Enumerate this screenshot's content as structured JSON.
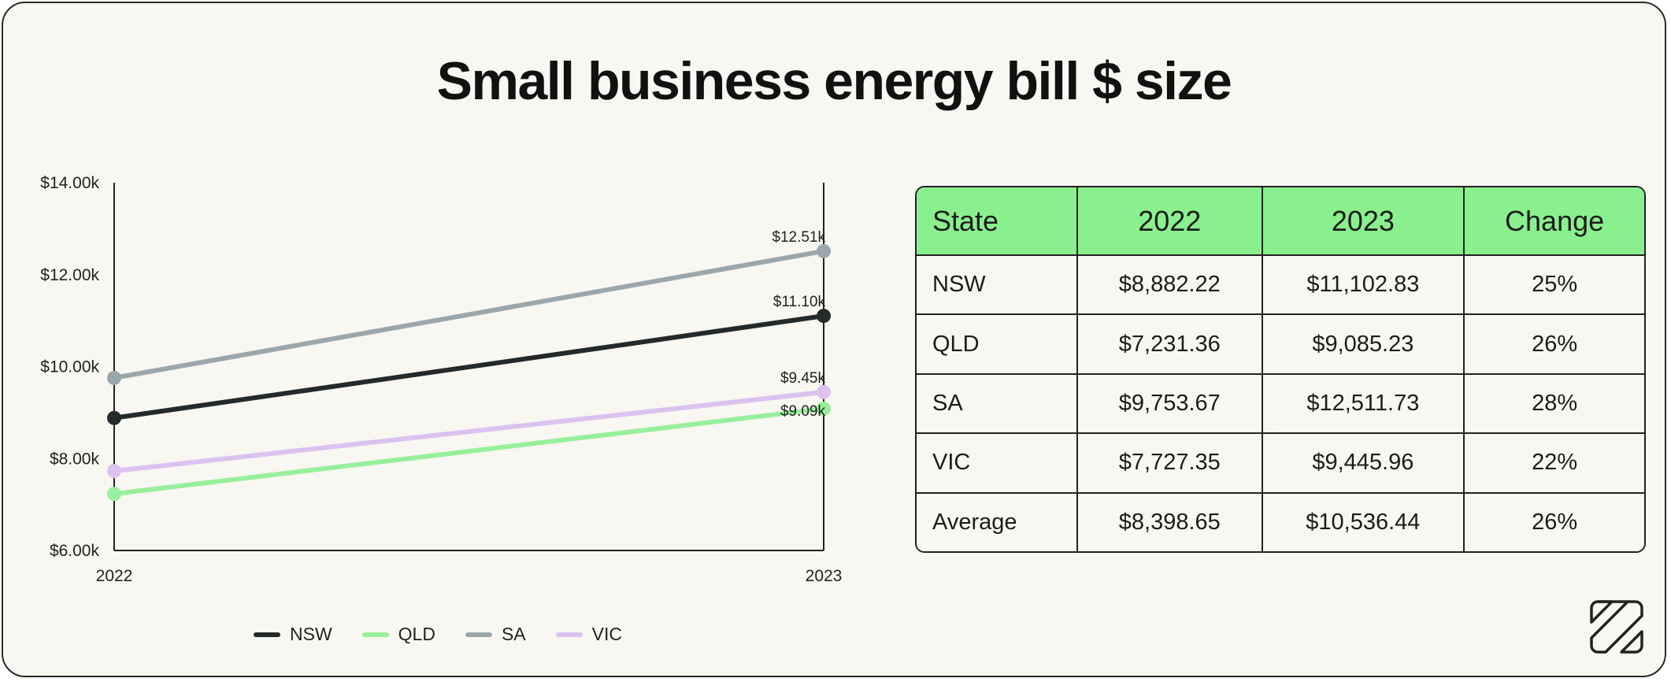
{
  "title": "Small business energy bill $ size",
  "colors": {
    "NSW": "#24292a",
    "QLD": "#98ef9c",
    "SA": "#9aa7ad",
    "VIC": "#dcc1f1",
    "header_bg": "#8af08d",
    "background": "#f8f7f1"
  },
  "chart_data": {
    "type": "line",
    "x": [
      "2022",
      "2023"
    ],
    "ylim": [
      6000,
      14000
    ],
    "yticks": [
      {
        "value": 6000,
        "label": "$6.00k"
      },
      {
        "value": 8000,
        "label": "$8.00k"
      },
      {
        "value": 10000,
        "label": "$10.00k"
      },
      {
        "value": 12000,
        "label": "$12.00k"
      },
      {
        "value": 14000,
        "label": "$14.00k"
      }
    ],
    "grid": false,
    "legend_position": "bottom",
    "series": [
      {
        "name": "NSW",
        "values": [
          8882.22,
          11102.83
        ],
        "end_label": "$11.10k"
      },
      {
        "name": "QLD",
        "values": [
          7231.36,
          9085.23
        ],
        "end_label": "$9.09k"
      },
      {
        "name": "SA",
        "values": [
          9753.67,
          12511.73
        ],
        "end_label": "$12.51k"
      },
      {
        "name": "VIC",
        "values": [
          7727.35,
          9445.96
        ],
        "end_label": "$9.45k"
      }
    ]
  },
  "table": {
    "headers": [
      "State",
      "2022",
      "2023",
      "Change"
    ],
    "rows": [
      [
        "NSW",
        "$8,882.22",
        "$11,102.83",
        "25%"
      ],
      [
        "QLD",
        "$7,231.36",
        "$9,085.23",
        "26%"
      ],
      [
        "SA",
        "$9,753.67",
        "$12,511.73",
        "28%"
      ],
      [
        "VIC",
        "$7,727.35",
        "$9,445.96",
        "22%"
      ],
      [
        "Average",
        "$8,398.65",
        "$10,536.44",
        "26%"
      ]
    ]
  },
  "logo_icon": "brand-logo-icon"
}
